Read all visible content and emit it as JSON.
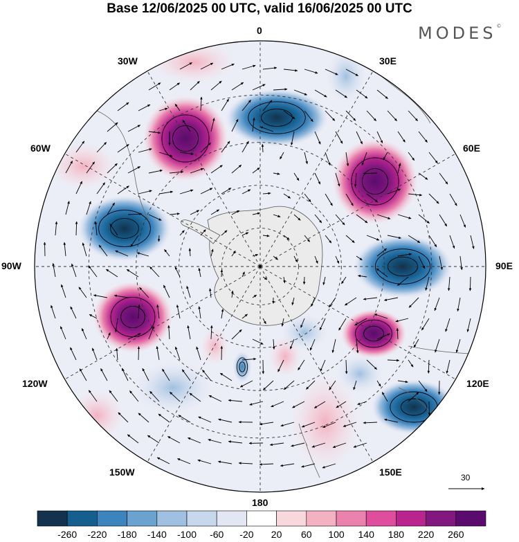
{
  "title": "Base 12/06/2025 00 UTC, valid 16/06/2025 00 UTC",
  "brand": "MODES",
  "brand_mark": "©",
  "lon_labels": [
    "0",
    "30E",
    "60E",
    "90E",
    "120E",
    "150E",
    "180",
    "150W",
    "120W",
    "90W",
    "60W",
    "30W"
  ],
  "colorbar": {
    "labels": [
      "-260",
      "-220",
      "-180",
      "-140",
      "-100",
      "-60",
      "-20",
      "20",
      "60",
      "100",
      "140",
      "180",
      "220",
      "260"
    ],
    "colors": [
      "#14324e",
      "#145f8e",
      "#3b84bd",
      "#6aa3cf",
      "#9fc0e0",
      "#c7d7ec",
      "#e3e6f3",
      "#ffffff",
      "#f8d8dc",
      "#f3b1c2",
      "#ea82ad",
      "#de4e9d",
      "#b9248f",
      "#82177f",
      "#5b0b6e"
    ]
  },
  "vector_reference": {
    "label": "30"
  },
  "map": {
    "projection": "south-polar-stereographic",
    "anomalies": [
      {
        "type": "positive",
        "value": 260
      },
      {
        "type": "negative",
        "value": -260
      },
      {
        "type": "positive",
        "value": 260
      },
      {
        "type": "negative",
        "value": -260
      },
      {
        "type": "negative",
        "value": -260
      },
      {
        "type": "positive",
        "value": 260
      },
      {
        "type": "positive",
        "value": 220
      },
      {
        "type": "negative",
        "value": -220
      },
      {
        "type": "negative",
        "value": -140
      }
    ]
  }
}
